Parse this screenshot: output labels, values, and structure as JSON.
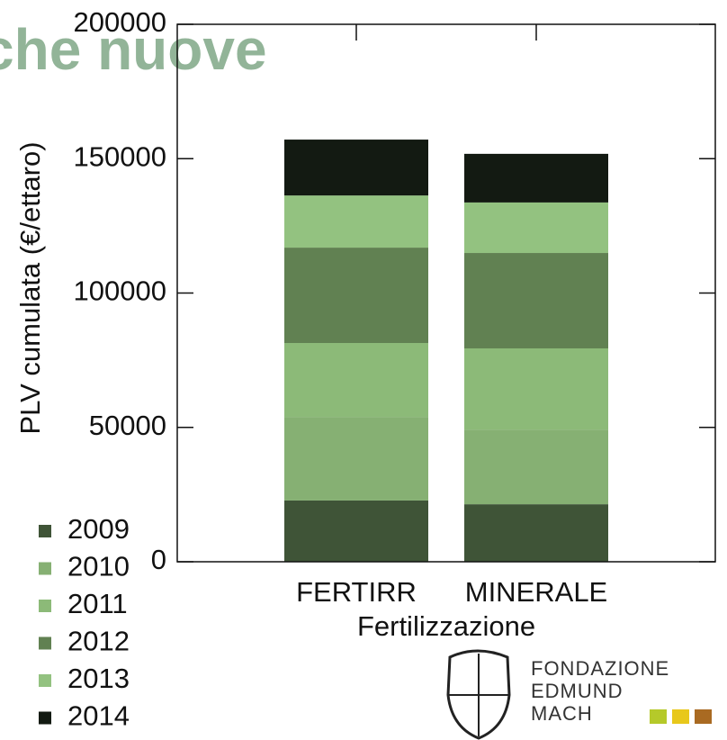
{
  "chart_data": {
    "type": "stacked_bar",
    "watermark": "che nuove",
    "ylabel": "PLV cumulata (€/ettaro)",
    "xlabel": "Fertilizzazione",
    "categories": [
      "FERTIRR",
      "MINERALE"
    ],
    "series": [
      {
        "name": "2009",
        "color": "#3f5437",
        "values": [
          22800,
          21400
        ]
      },
      {
        "name": "2010",
        "color": "#86b073",
        "values": [
          31100,
          27800
        ]
      },
      {
        "name": "2011",
        "color": "#8cba78",
        "values": [
          27500,
          30200
        ]
      },
      {
        "name": "2012",
        "color": "#618152",
        "values": [
          35500,
          35500
        ]
      },
      {
        "name": "2013",
        "color": "#93c280",
        "values": [
          19400,
          18800
        ]
      },
      {
        "name": "2014",
        "color": "#131a12",
        "values": [
          20800,
          18100
        ]
      }
    ],
    "ylim": [
      0,
      200000
    ],
    "yticks": [
      0,
      50000,
      100000,
      150000,
      200000
    ]
  },
  "logo": {
    "lines": [
      "FONDAZIONE",
      "EDMUND",
      "MACH"
    ],
    "colors": [
      "#b5c92a",
      "#e8c81b",
      "#a96a22"
    ]
  }
}
